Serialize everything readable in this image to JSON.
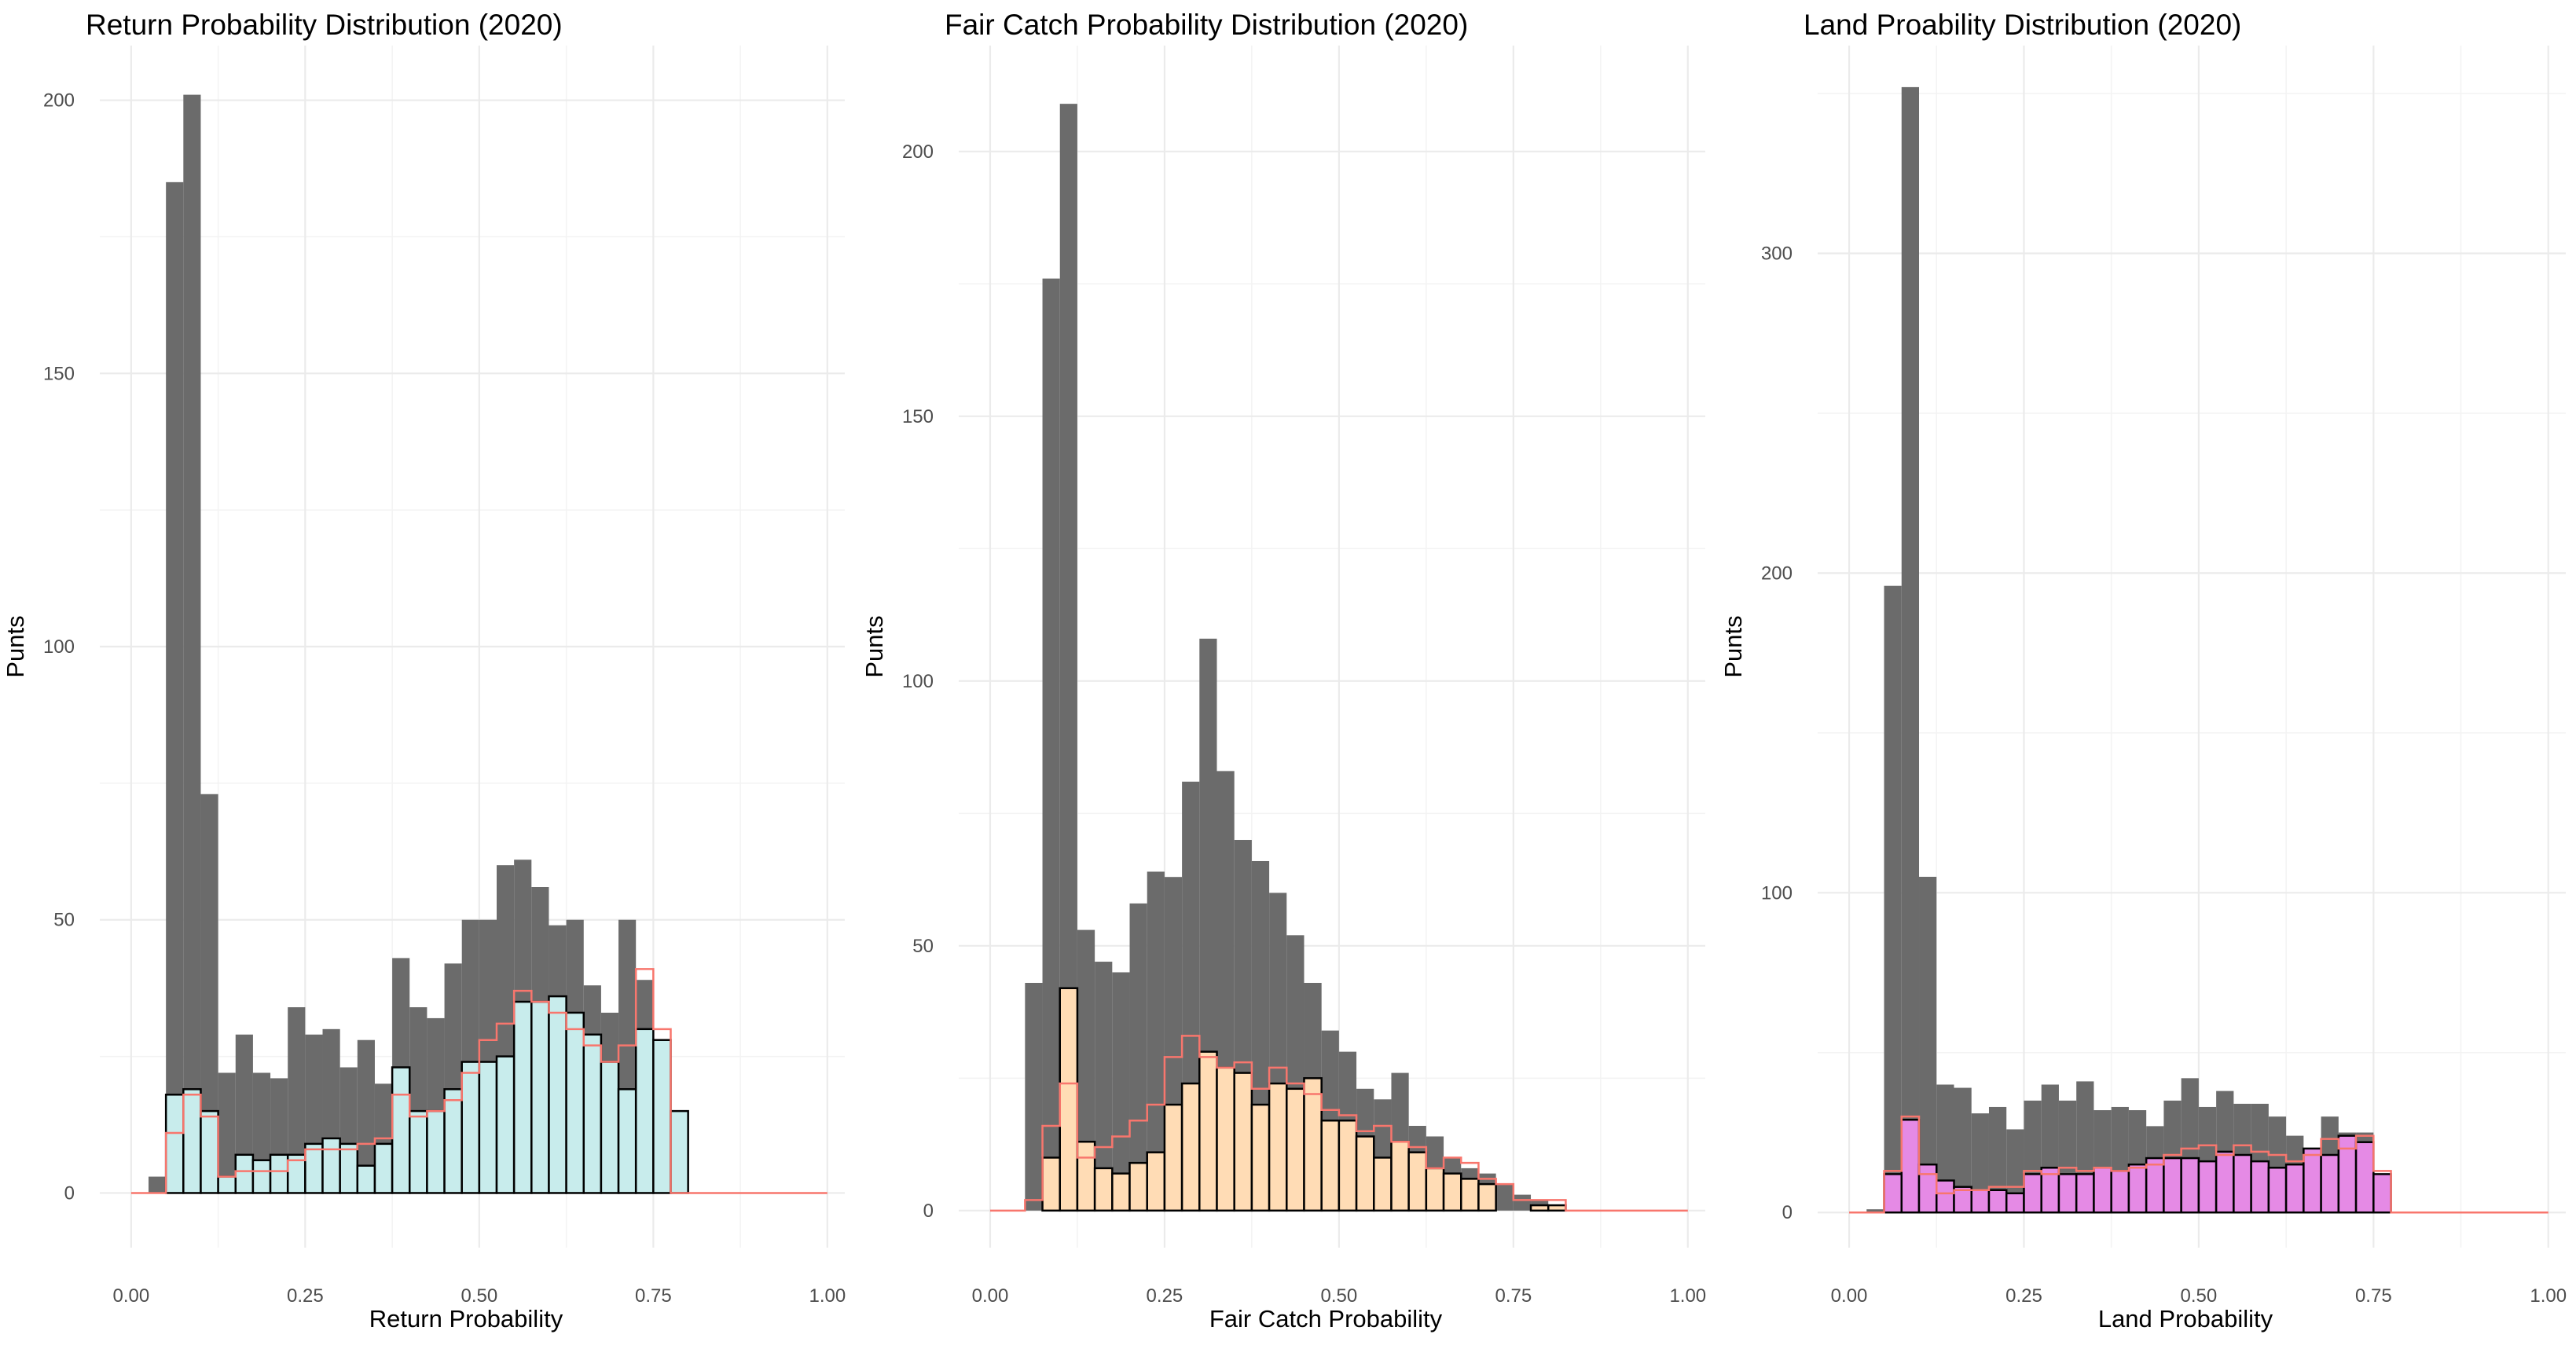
{
  "colors": {
    "background": "#ffffff",
    "grid_major": "#ebebeb",
    "grid_minor": "#f3f3f3",
    "all_punts": "#6b6b6b",
    "outcome_outline": "#000000",
    "predicted_line": "#f8766d",
    "return_fill": "#c8ecec",
    "fair_catch_fill": "#ffdcb5",
    "land_fill": "#e58ae5"
  },
  "chart_data": [
    {
      "type": "bar",
      "title": "Return Probability Distribution (2020)",
      "xlabel": "Return Probability",
      "ylabel": "Punts",
      "xlim": [
        -0.045,
        1.025
      ],
      "ylim": [
        -10,
        210
      ],
      "x_ticks": [
        0,
        0.25,
        0.5,
        0.75,
        1
      ],
      "x_tick_labels": [
        "0.00",
        "0.25",
        "0.50",
        "0.75",
        "1.00"
      ],
      "y_ticks": [
        0,
        50,
        100,
        150,
        200
      ],
      "y_tick_labels": [
        "0",
        "50",
        "100",
        "150",
        "200"
      ],
      "bin_width": 0.025,
      "bin_start": 0,
      "grid": true,
      "fill_color": "#c8ecec",
      "series": [
        {
          "role": "all",
          "values": [
            0,
            3,
            185,
            201,
            73,
            22,
            29,
            22,
            21,
            34,
            29,
            30,
            23,
            28,
            20,
            43,
            34,
            32,
            42,
            50,
            50,
            60,
            61,
            56,
            49,
            50,
            38,
            33,
            50,
            39,
            1,
            0,
            0,
            0,
            0,
            0,
            0,
            0,
            0,
            0
          ]
        },
        {
          "role": "outcome",
          "values": [
            0,
            0,
            18,
            19,
            15,
            3,
            7,
            6,
            7,
            7,
            9,
            10,
            9,
            5,
            9,
            23,
            15,
            15,
            19,
            24,
            24,
            25,
            35,
            35,
            36,
            33,
            29,
            24,
            19,
            30,
            28,
            15,
            0,
            0,
            0,
            0,
            0,
            0,
            0,
            0
          ]
        },
        {
          "role": "predicted",
          "values": [
            0,
            0,
            11,
            18,
            14,
            3,
            4,
            4,
            4,
            6,
            8,
            8,
            8,
            9,
            10,
            18,
            14,
            15,
            17,
            22,
            28,
            31,
            37,
            35,
            33,
            30,
            27,
            24,
            27,
            41,
            30,
            0,
            0,
            0,
            0,
            0,
            0,
            0,
            0,
            0
          ]
        }
      ]
    },
    {
      "type": "bar",
      "title": "Fair Catch Probability Distribution (2020)",
      "xlabel": "Fair Catch Probability",
      "ylabel": "Punts",
      "xlim": [
        -0.045,
        1.025
      ],
      "ylim": [
        -7,
        220
      ],
      "x_ticks": [
        0,
        0.25,
        0.5,
        0.75,
        1
      ],
      "x_tick_labels": [
        "0.00",
        "0.25",
        "0.50",
        "0.75",
        "1.00"
      ],
      "y_ticks": [
        0,
        50,
        100,
        150,
        200
      ],
      "y_tick_labels": [
        "0",
        "50",
        "100",
        "150",
        "200"
      ],
      "bin_width": 0.025,
      "bin_start": 0,
      "grid": true,
      "fill_color": "#ffdcb5",
      "series": [
        {
          "role": "all",
          "values": [
            0,
            0,
            43,
            176,
            209,
            53,
            47,
            45,
            58,
            64,
            63,
            81,
            108,
            83,
            70,
            66,
            60,
            52,
            43,
            34,
            30,
            23,
            21,
            26,
            16,
            14,
            10,
            8,
            7,
            5,
            3,
            2,
            0,
            0,
            0,
            0,
            0,
            0,
            0,
            0
          ]
        },
        {
          "role": "outcome",
          "values": [
            0,
            0,
            0,
            10,
            42,
            13,
            8,
            7,
            9,
            11,
            20,
            24,
            30,
            27,
            26,
            20,
            24,
            23,
            25,
            17,
            17,
            14,
            10,
            13,
            11,
            8,
            7,
            6,
            5,
            0,
            0,
            1,
            1,
            0,
            0,
            0,
            0,
            0,
            0,
            0
          ]
        },
        {
          "role": "predicted",
          "values": [
            0,
            0,
            2,
            16,
            24,
            10,
            12,
            14,
            17,
            20,
            29,
            33,
            29,
            27,
            28,
            23,
            27,
            24,
            22,
            19,
            18,
            15,
            16,
            13,
            12,
            8,
            10,
            9,
            6,
            5,
            2,
            2,
            2,
            0,
            0,
            0,
            0,
            0,
            0,
            0
          ]
        }
      ]
    },
    {
      "type": "bar",
      "title": "Land Proability Distribution (2020)",
      "xlabel": "Land Probability",
      "ylabel": "Punts",
      "xlim": [
        -0.045,
        1.025
      ],
      "ylim": [
        -11,
        365
      ],
      "x_ticks": [
        0,
        0.25,
        0.5,
        0.75,
        1
      ],
      "x_tick_labels": [
        "0.00",
        "0.25",
        "0.50",
        "0.75",
        "1.00"
      ],
      "y_ticks": [
        0,
        100,
        200,
        300
      ],
      "y_tick_labels": [
        "0",
        "100",
        "200",
        "300"
      ],
      "bin_width": 0.025,
      "bin_start": 0,
      "grid": true,
      "fill_color": "#e58ae5",
      "series": [
        {
          "role": "all",
          "values": [
            0,
            1,
            196,
            352,
            105,
            40,
            39,
            31,
            33,
            26,
            35,
            40,
            35,
            41,
            32,
            33,
            32,
            27,
            35,
            42,
            33,
            38,
            34,
            34,
            30,
            24,
            20,
            30,
            25,
            25,
            10,
            0,
            0,
            0,
            0,
            0,
            0,
            0,
            0,
            0
          ]
        },
        {
          "role": "outcome",
          "values": [
            0,
            0,
            12,
            29,
            15,
            10,
            8,
            7,
            7,
            6,
            12,
            14,
            12,
            12,
            14,
            13,
            15,
            17,
            17,
            17,
            16,
            19,
            18,
            16,
            14,
            15,
            20,
            18,
            24,
            22,
            12,
            0,
            0,
            0,
            0,
            0,
            0,
            0,
            0,
            0
          ]
        },
        {
          "role": "predicted",
          "values": [
            0,
            0,
            13,
            30,
            12,
            6,
            7,
            7,
            8,
            8,
            13,
            12,
            14,
            13,
            14,
            13,
            14,
            15,
            18,
            20,
            21,
            18,
            21,
            19,
            18,
            16,
            18,
            23,
            20,
            24,
            13,
            0,
            0,
            0,
            0,
            0,
            0,
            0,
            0,
            0
          ]
        }
      ]
    }
  ]
}
